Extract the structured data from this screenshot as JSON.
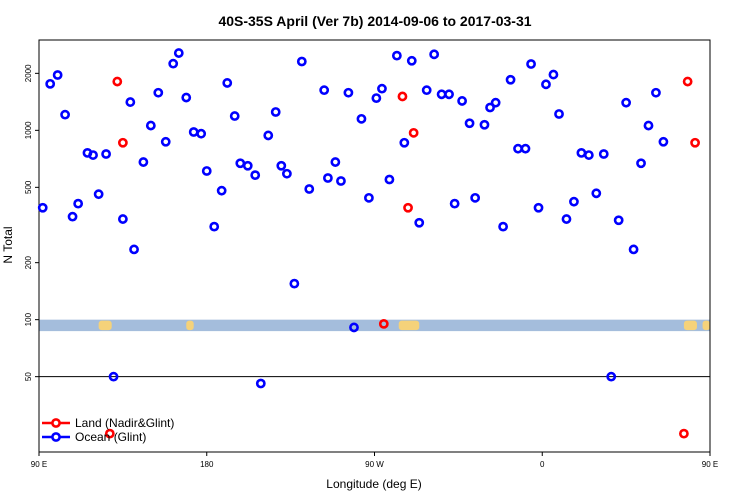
{
  "chart_data": {
    "type": "scatter",
    "title": "40S-35S April (Ver 7b)   2014-09-06 to 2017-03-31",
    "xlabel": "Longitude (deg E)",
    "ylabel": "N Total",
    "xlim": [
      90,
      450
    ],
    "ylim_log": [
      20,
      3000
    ],
    "y_scale": "log",
    "x_ticks": [
      {
        "value": 90,
        "label": "90 E"
      },
      {
        "value": 180,
        "label": "180"
      },
      {
        "value": 270,
        "label": "90 W"
      },
      {
        "value": 360,
        "label": "0"
      },
      {
        "value": 450,
        "label": "90 E"
      },
      {
        "value": 540,
        "label": "180"
      }
    ],
    "x_axis_values": [
      90,
      180,
      270,
      360,
      450,
      540
    ],
    "y_ticks": [
      {
        "value": 50,
        "label": "50"
      },
      {
        "value": 100,
        "label": "100"
      },
      {
        "value": 200,
        "label": "200"
      },
      {
        "value": 500,
        "label": "500"
      },
      {
        "value": 1000,
        "label": "1000"
      },
      {
        "value": 2000,
        "label": "2000"
      }
    ],
    "reference_line": {
      "y": 50
    },
    "land_band": {
      "y_from": 87,
      "y_to": 100,
      "color": "#a4bddc",
      "land_color": "#f5d27a"
    },
    "legend": {
      "position": "bottom-left",
      "entries": [
        {
          "name": "Land (Nadir&Glint)",
          "color": "#ff0000"
        },
        {
          "name": "Ocean (Glint)",
          "color": "#0000ff"
        }
      ]
    },
    "series": [
      {
        "name": "Land (Nadir&Glint)",
        "color": "#ff0000",
        "points": [
          {
            "x": 132,
            "y": 1810
          },
          {
            "x": 135,
            "y": 860
          },
          {
            "x": 128,
            "y": 25
          },
          {
            "x": 285,
            "y": 1510
          },
          {
            "x": 288,
            "y": 390
          },
          {
            "x": 291,
            "y": 970
          },
          {
            "x": 275,
            "y": 95
          },
          {
            "x": 438,
            "y": 1810
          },
          {
            "x": 442,
            "y": 860
          },
          {
            "x": 436,
            "y": 25
          }
        ]
      },
      {
        "name": "Ocean (Glint)",
        "color": "#0000ff",
        "points": [
          {
            "x": 92,
            "y": 390
          },
          {
            "x": 96,
            "y": 1760
          },
          {
            "x": 100,
            "y": 1960
          },
          {
            "x": 104,
            "y": 1210
          },
          {
            "x": 108,
            "y": 350
          },
          {
            "x": 111,
            "y": 410
          },
          {
            "x": 116,
            "y": 760
          },
          {
            "x": 119,
            "y": 740
          },
          {
            "x": 122,
            "y": 460
          },
          {
            "x": 126,
            "y": 750
          },
          {
            "x": 130,
            "y": 50
          },
          {
            "x": 135,
            "y": 340
          },
          {
            "x": 139,
            "y": 1410
          },
          {
            "x": 141,
            "y": 235
          },
          {
            "x": 146,
            "y": 680
          },
          {
            "x": 150,
            "y": 1060
          },
          {
            "x": 154,
            "y": 1580
          },
          {
            "x": 158,
            "y": 870
          },
          {
            "x": 162,
            "y": 2250
          },
          {
            "x": 165,
            "y": 2560
          },
          {
            "x": 169,
            "y": 1490
          },
          {
            "x": 173,
            "y": 980
          },
          {
            "x": 177,
            "y": 960
          },
          {
            "x": 180,
            "y": 610
          },
          {
            "x": 184,
            "y": 310
          },
          {
            "x": 188,
            "y": 480
          },
          {
            "x": 191,
            "y": 1780
          },
          {
            "x": 195,
            "y": 1190
          },
          {
            "x": 198,
            "y": 670
          },
          {
            "x": 202,
            "y": 650
          },
          {
            "x": 206,
            "y": 580
          },
          {
            "x": 209,
            "y": 46
          },
          {
            "x": 213,
            "y": 940
          },
          {
            "x": 217,
            "y": 1250
          },
          {
            "x": 220,
            "y": 650
          },
          {
            "x": 223,
            "y": 590
          },
          {
            "x": 227,
            "y": 155
          },
          {
            "x": 231,
            "y": 2310
          },
          {
            "x": 235,
            "y": 490
          },
          {
            "x": 243,
            "y": 1630
          },
          {
            "x": 245,
            "y": 560
          },
          {
            "x": 249,
            "y": 680
          },
          {
            "x": 252,
            "y": 540
          },
          {
            "x": 256,
            "y": 1580
          },
          {
            "x": 259,
            "y": 91
          },
          {
            "x": 263,
            "y": 1150
          },
          {
            "x": 267,
            "y": 440
          },
          {
            "x": 271,
            "y": 1480
          },
          {
            "x": 274,
            "y": 1660
          },
          {
            "x": 278,
            "y": 550
          },
          {
            "x": 282,
            "y": 2480
          },
          {
            "x": 286,
            "y": 860
          },
          {
            "x": 290,
            "y": 2330
          },
          {
            "x": 294,
            "y": 325
          },
          {
            "x": 298,
            "y": 1630
          },
          {
            "x": 302,
            "y": 2520
          },
          {
            "x": 306,
            "y": 1550
          },
          {
            "x": 310,
            "y": 1550
          },
          {
            "x": 313,
            "y": 410
          },
          {
            "x": 317,
            "y": 1430
          },
          {
            "x": 321,
            "y": 1090
          },
          {
            "x": 324,
            "y": 440
          },
          {
            "x": 329,
            "y": 1070
          },
          {
            "x": 332,
            "y": 1320
          },
          {
            "x": 335,
            "y": 1400
          },
          {
            "x": 339,
            "y": 310
          },
          {
            "x": 343,
            "y": 1850
          },
          {
            "x": 347,
            "y": 800
          },
          {
            "x": 351,
            "y": 800
          },
          {
            "x": 354,
            "y": 2240
          },
          {
            "x": 358,
            "y": 390
          },
          {
            "x": 362,
            "y": 1750
          },
          {
            "x": 366,
            "y": 1970
          },
          {
            "x": 369,
            "y": 1220
          },
          {
            "x": 373,
            "y": 340
          },
          {
            "x": 377,
            "y": 420
          },
          {
            "x": 381,
            "y": 760
          },
          {
            "x": 385,
            "y": 740
          },
          {
            "x": 389,
            "y": 465
          },
          {
            "x": 393,
            "y": 750
          },
          {
            "x": 397,
            "y": 50
          },
          {
            "x": 401,
            "y": 335
          },
          {
            "x": 405,
            "y": 1400
          },
          {
            "x": 409,
            "y": 235
          },
          {
            "x": 413,
            "y": 670
          },
          {
            "x": 417,
            "y": 1060
          },
          {
            "x": 421,
            "y": 1580
          },
          {
            "x": 425,
            "y": 870
          }
        ]
      }
    ]
  }
}
